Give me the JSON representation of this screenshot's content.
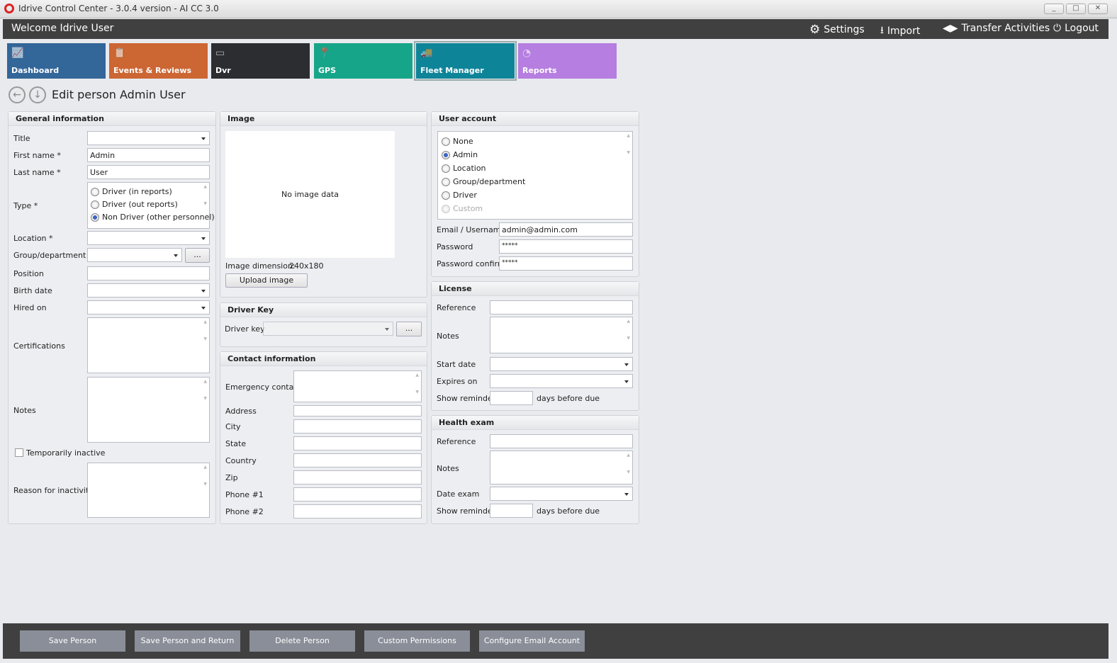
{
  "window": {
    "title": "Idrive Control Center - 3.0.4 version - AI CC 3.0",
    "minimize": "_",
    "maximize": "□",
    "close": "✕"
  },
  "header": {
    "welcome": "Welcome Idrive User",
    "settings": "Settings",
    "import": "Import",
    "transfer": "Transfer Activities",
    "logout": "Logout"
  },
  "tiles": [
    {
      "label": "Dashboard",
      "color": "#336699",
      "icon": "chart-icon"
    },
    {
      "label": "Events & Reviews",
      "color": "#cc6633",
      "icon": "clipboard-icon"
    },
    {
      "label": "Dvr",
      "color": "#2b2d31",
      "icon": "dvr-icon"
    },
    {
      "label": "GPS",
      "color": "#17a589",
      "icon": "map-pin-icon"
    },
    {
      "label": "Fleet Manager",
      "color": "#0e8499",
      "icon": "trucks-icon",
      "selected": true
    },
    {
      "label": "Reports",
      "color": "#b57ee0",
      "icon": "pie-chart-icon"
    }
  ],
  "page": {
    "title": "Edit person Admin User"
  },
  "general": {
    "heading": "General information",
    "title_label": "Title",
    "first_label": "First name *",
    "first_value": "Admin",
    "last_label": "Last name *",
    "last_value": "User",
    "type_label": "Type *",
    "type_options": [
      "Driver (in reports)",
      "Driver (out reports)",
      "Non Driver (other personnel)"
    ],
    "type_selected": 2,
    "location_label": "Location *",
    "group_label": "Group/department",
    "ellipsis": "...",
    "position_label": "Position",
    "birth_label": "Birth date",
    "hired_label": "Hired on",
    "cert_label": "Certifications",
    "notes_label": "Notes",
    "inactive_label": "Temporarily inactive",
    "reason_label": "Reason for inactivity"
  },
  "image": {
    "heading": "Image",
    "empty": "No image data",
    "dim_label": "Image dimension:",
    "dim_value": "240x180",
    "upload": "Upload image"
  },
  "driver_key": {
    "heading": "Driver Key",
    "label": "Driver key",
    "ellipsis": "..."
  },
  "contact": {
    "heading": "Contact information",
    "emergency": "Emergency contact",
    "address": "Address",
    "city": "City",
    "state": "State",
    "country": "Country",
    "zip": "Zip",
    "phone1": "Phone #1",
    "phone2": "Phone #2"
  },
  "account": {
    "heading": "User account",
    "options": [
      "None",
      "Admin",
      "Location",
      "Group/department",
      "Driver",
      "Custom"
    ],
    "selected": 1,
    "email_label": "Email / Username",
    "email_value": "admin@admin.com",
    "password_label": "Password",
    "password_value": "*****",
    "confirm_label": "Password confirm",
    "confirm_value": "*****"
  },
  "license": {
    "heading": "License",
    "reference": "Reference",
    "notes": "Notes",
    "start": "Start date",
    "expires": "Expires on",
    "reminder": "Show reminder",
    "days": "days before due"
  },
  "health": {
    "heading": "Health exam",
    "reference": "Reference",
    "notes": "Notes",
    "date": "Date exam",
    "reminder": "Show reminder",
    "days": "days before due"
  },
  "footer": {
    "save": "Save Person",
    "save_return": "Save Person and Return",
    "delete": "Delete Person",
    "permissions": "Custom Permissions",
    "email": "Configure Email Account"
  }
}
